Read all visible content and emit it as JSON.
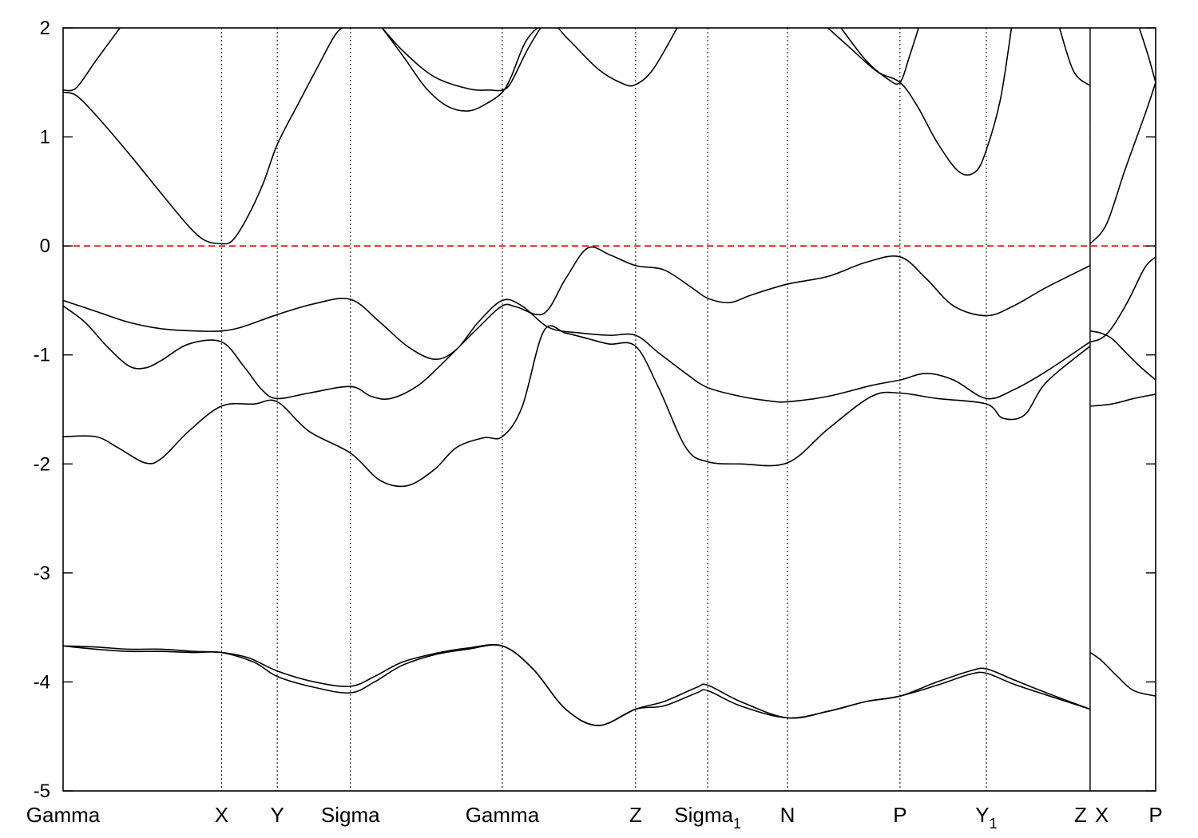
{
  "chart_data": {
    "type": "line",
    "title": "",
    "xlabel": "",
    "ylabel": "",
    "ylim": [
      -5,
      2
    ],
    "yticks": [
      2,
      1,
      0,
      -1,
      -2,
      -3,
      -4,
      -5
    ],
    "ytick_labels": [
      "2",
      "1",
      "0",
      "-1",
      "-2",
      "-3",
      "-4",
      "-5"
    ],
    "fermi_level": 0,
    "fermi_line_color": "#e00000",
    "line_color": "#000000",
    "grid": false,
    "legend": "none",
    "kpoints": [
      {
        "name": "Gamma",
        "x": 0.0,
        "sub": ""
      },
      {
        "name": "X",
        "x": 0.145,
        "sub": ""
      },
      {
        "name": "Y",
        "x": 0.196,
        "sub": ""
      },
      {
        "name": "Sigma",
        "x": 0.263,
        "sub": ""
      },
      {
        "name": "Gamma",
        "x": 0.402,
        "sub": ""
      },
      {
        "name": "Z",
        "x": 0.524,
        "sub": ""
      },
      {
        "name": "Sigma",
        "x": 0.59,
        "sub": "1"
      },
      {
        "name": "N",
        "x": 0.663,
        "sub": ""
      },
      {
        "name": "P",
        "x": 0.766,
        "sub": ""
      },
      {
        "name": "Y",
        "x": 0.845,
        "sub": "1"
      },
      {
        "name": "Z",
        "x": 0.94,
        "sub": ""
      },
      {
        "name": "X",
        "x": 0.94,
        "sub": ""
      },
      {
        "name": "P",
        "x": 1.0,
        "sub": ""
      }
    ],
    "series": [
      {
        "x": [
          0.0,
          0.012,
          0.03,
          0.052
        ],
        "y": [
          1.43,
          1.45,
          1.7,
          2.0
        ]
      },
      {
        "x": [
          0.0,
          0.012,
          0.03,
          0.06,
          0.09,
          0.115,
          0.13,
          0.145,
          0.155,
          0.168,
          0.183,
          0.196,
          0.215,
          0.235,
          0.25,
          0.263
        ],
        "y": [
          1.41,
          1.38,
          1.2,
          0.85,
          0.48,
          0.18,
          0.05,
          0.02,
          0.05,
          0.25,
          0.57,
          0.93,
          1.3,
          1.68,
          1.95,
          2.05
        ]
      },
      {
        "x": [
          0.292,
          0.312,
          0.332,
          0.352,
          0.372,
          0.39,
          0.402,
          0.41,
          0.425,
          0.445,
          0.462,
          0.49,
          0.512,
          0.524,
          0.54,
          0.562
        ],
        "y": [
          2.0,
          1.73,
          1.45,
          1.28,
          1.24,
          1.32,
          1.41,
          1.55,
          1.9,
          2.05,
          1.9,
          1.62,
          1.49,
          1.48,
          1.62,
          2.0
        ]
      },
      {
        "x": [
          0.292,
          0.312,
          0.34,
          0.372,
          0.39,
          0.402,
          0.41,
          0.425,
          0.44
        ],
        "y": [
          2.0,
          1.78,
          1.55,
          1.44,
          1.43,
          1.43,
          1.5,
          1.8,
          2.05
        ]
      },
      {
        "x": [
          0.7,
          0.72,
          0.745,
          0.766,
          0.782,
          0.8,
          0.82,
          0.835,
          0.845,
          0.858,
          0.868
        ],
        "y": [
          2.0,
          1.82,
          1.6,
          1.5,
          1.28,
          0.95,
          0.68,
          0.68,
          0.88,
          1.35,
          2.0
        ]
      },
      {
        "x": [
          0.712,
          0.735,
          0.755,
          0.766,
          0.775,
          0.783
        ],
        "y": [
          2.0,
          1.7,
          1.53,
          1.5,
          1.75,
          2.0
        ]
      },
      {
        "x": [
          0.912,
          0.925,
          0.94
        ],
        "y": [
          2.0,
          1.6,
          1.47
        ]
      },
      {
        "x": [
          0.94,
          0.955,
          0.972,
          0.99,
          1.0
        ],
        "y": [
          0.02,
          0.2,
          0.7,
          1.2,
          1.5
        ]
      },
      {
        "x": [
          0.985,
          0.993,
          1.0
        ],
        "y": [
          2.0,
          1.75,
          1.5
        ]
      },
      {
        "x": [
          0.0,
          0.03,
          0.06,
          0.09,
          0.12,
          0.145,
          0.165,
          0.196,
          0.23,
          0.263,
          0.29,
          0.315,
          0.34,
          0.36,
          0.38,
          0.402,
          0.42,
          0.445,
          0.475,
          0.5,
          0.524,
          0.545,
          0.57,
          0.59,
          0.62,
          0.645,
          0.663,
          0.7,
          0.74,
          0.766,
          0.79,
          0.815,
          0.845,
          0.87,
          0.9,
          0.94
        ],
        "y": [
          -0.5,
          -0.6,
          -0.7,
          -0.76,
          -0.78,
          -0.78,
          -0.74,
          -0.63,
          -0.53,
          -0.49,
          -0.7,
          -0.92,
          -1.04,
          -0.95,
          -0.7,
          -0.5,
          -0.55,
          -0.75,
          -0.8,
          -0.82,
          -0.82,
          -0.98,
          -1.17,
          -1.3,
          -1.38,
          -1.42,
          -1.43,
          -1.38,
          -1.28,
          -1.23,
          -1.17,
          -1.23,
          -1.4,
          -1.32,
          -1.15,
          -0.88
        ]
      },
      {
        "x": [
          0.0,
          0.02,
          0.04,
          0.06,
          0.075,
          0.09,
          0.115,
          0.145,
          0.165,
          0.182,
          0.196,
          0.225,
          0.263,
          0.282,
          0.3,
          0.325,
          0.35,
          0.38,
          0.402,
          0.415,
          0.44,
          0.46,
          0.48,
          0.5,
          0.524,
          0.55,
          0.575,
          0.59,
          0.61,
          0.63,
          0.663,
          0.7,
          0.735,
          0.766,
          0.79,
          0.815,
          0.845,
          0.87,
          0.9,
          0.94
        ],
        "y": [
          -0.55,
          -0.7,
          -0.92,
          -1.1,
          -1.12,
          -1.05,
          -0.9,
          -0.88,
          -1.1,
          -1.32,
          -1.4,
          -1.35,
          -1.29,
          -1.38,
          -1.4,
          -1.28,
          -1.05,
          -0.75,
          -0.55,
          -0.56,
          -0.62,
          -0.3,
          -0.02,
          -0.08,
          -0.18,
          -0.22,
          -0.38,
          -0.48,
          -0.52,
          -0.45,
          -0.35,
          -0.28,
          -0.15,
          -0.1,
          -0.3,
          -0.55,
          -0.64,
          -0.55,
          -0.38,
          -0.18
        ]
      },
      {
        "x": [
          0.0,
          0.03,
          0.05,
          0.075,
          0.09,
          0.115,
          0.145,
          0.175,
          0.196,
          0.225,
          0.263,
          0.29,
          0.315,
          0.34,
          0.36,
          0.385,
          0.402,
          0.42,
          0.44,
          0.46,
          0.48,
          0.5,
          0.524,
          0.545,
          0.57,
          0.59,
          0.62,
          0.663,
          0.7,
          0.74,
          0.766,
          0.8,
          0.845,
          0.86,
          0.88,
          0.9,
          0.94
        ],
        "y": [
          -1.75,
          -1.75,
          -1.85,
          -1.99,
          -1.95,
          -1.7,
          -1.47,
          -1.45,
          -1.43,
          -1.7,
          -1.9,
          -2.15,
          -2.2,
          -2.05,
          -1.85,
          -1.76,
          -1.75,
          -1.48,
          -0.78,
          -0.8,
          -0.85,
          -0.9,
          -0.92,
          -1.3,
          -1.85,
          -1.98,
          -2.0,
          -1.99,
          -1.68,
          -1.38,
          -1.35,
          -1.4,
          -1.45,
          -1.58,
          -1.55,
          -1.25,
          -0.92
        ]
      },
      {
        "x": [
          0.0,
          0.03,
          0.06,
          0.09,
          0.12,
          0.145,
          0.175,
          0.196,
          0.23,
          0.263,
          0.285,
          0.31,
          0.34,
          0.37,
          0.402,
          0.43,
          0.46,
          0.49,
          0.524,
          0.55,
          0.58,
          0.59,
          0.62,
          0.663,
          0.7,
          0.735,
          0.766,
          0.8,
          0.83,
          0.845,
          0.87,
          0.9,
          0.94
        ],
        "y": [
          -3.67,
          -3.7,
          -3.72,
          -3.72,
          -3.73,
          -3.73,
          -3.82,
          -3.95,
          -4.05,
          -4.1,
          -4.0,
          -3.85,
          -3.75,
          -3.7,
          -3.67,
          -3.88,
          -4.25,
          -4.4,
          -4.25,
          -4.22,
          -4.1,
          -4.08,
          -4.22,
          -4.33,
          -4.27,
          -4.18,
          -4.13,
          -4.03,
          -3.93,
          -3.92,
          -4.02,
          -4.12,
          -4.25
        ]
      },
      {
        "x": [
          0.0,
          0.03,
          0.06,
          0.09,
          0.12,
          0.145,
          0.17,
          0.196,
          0.23,
          0.263,
          0.285,
          0.31,
          0.34,
          0.37,
          0.402,
          0.43,
          0.46,
          0.49,
          0.524,
          0.55,
          0.58,
          0.59,
          0.62,
          0.663,
          0.7,
          0.735,
          0.766,
          0.8,
          0.83,
          0.845,
          0.87,
          0.9,
          0.94
        ],
        "y": [
          -3.67,
          -3.68,
          -3.7,
          -3.7,
          -3.72,
          -3.73,
          -3.78,
          -3.9,
          -4.0,
          -4.04,
          -3.95,
          -3.82,
          -3.74,
          -3.69,
          -3.67,
          -3.88,
          -4.25,
          -4.4,
          -4.25,
          -4.18,
          -4.05,
          -4.03,
          -4.18,
          -4.33,
          -4.27,
          -4.18,
          -4.13,
          -4.0,
          -3.9,
          -3.88,
          -3.98,
          -4.1,
          -4.25
        ]
      },
      {
        "x": [
          0.94,
          0.95,
          0.96,
          0.97,
          0.985,
          1.0
        ],
        "y": [
          -0.78,
          -0.8,
          -0.85,
          -0.95,
          -1.1,
          -1.23
        ]
      },
      {
        "x": [
          0.94,
          0.95,
          0.96,
          0.975,
          0.99,
          1.0
        ],
        "y": [
          -0.88,
          -0.85,
          -0.75,
          -0.5,
          -0.2,
          -0.1
        ]
      },
      {
        "x": [
          0.94,
          0.96,
          0.98,
          1.0
        ],
        "y": [
          -1.47,
          -1.45,
          -1.4,
          -1.36
        ]
      },
      {
        "x": [
          0.94,
          0.95,
          0.965,
          0.98,
          1.0
        ],
        "y": [
          -3.73,
          -3.8,
          -3.95,
          -4.08,
          -4.13
        ]
      }
    ]
  }
}
